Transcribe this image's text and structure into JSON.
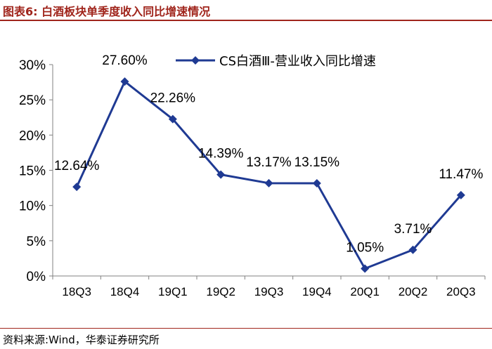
{
  "header": {
    "figure_title": "图表6:    白酒板块单季度收入同比增速情况"
  },
  "footer": {
    "source": "资料来源:Wind，华泰证券研究所"
  },
  "colors": {
    "series": "#1f3a93",
    "accent": "#a0251c",
    "axis": "#808080"
  },
  "chart_data": {
    "type": "line",
    "categories": [
      "18Q3",
      "18Q4",
      "19Q1",
      "19Q2",
      "19Q3",
      "19Q4",
      "20Q1",
      "20Q2",
      "20Q3"
    ],
    "series": [
      {
        "name": "CS白酒Ⅲ-营业收入同比增速",
        "values": [
          12.64,
          27.6,
          22.26,
          14.39,
          13.17,
          13.15,
          1.05,
          3.71,
          11.47
        ],
        "data_labels": [
          "12.64%",
          "27.60%",
          "22.26%",
          "14.39%",
          "13.17%",
          "13.15%",
          "1.05%",
          "3.71%",
          "11.47%"
        ]
      }
    ],
    "yticks": [
      "0%",
      "5%",
      "10%",
      "15%",
      "20%",
      "25%",
      "30%"
    ],
    "ylim": [
      0,
      30
    ],
    "xlabel": "",
    "ylabel": "",
    "grid": false,
    "legend_position": "top-right",
    "marker": "diamond"
  }
}
